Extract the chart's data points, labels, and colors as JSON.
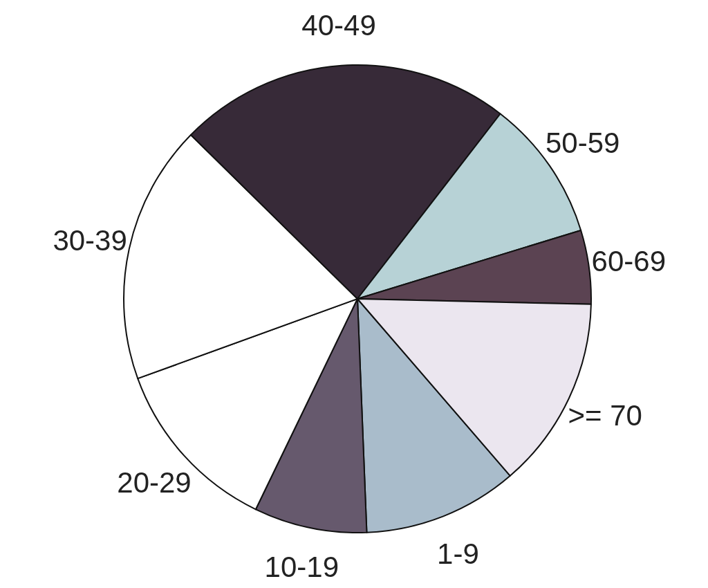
{
  "chart_data": {
    "type": "pie",
    "categories": [
      "1-9",
      "10-19",
      "20-29",
      "30-39",
      "40-49",
      "50-59",
      "60-69",
      ">= 70"
    ],
    "values": [
      10.7,
      7.8,
      12.3,
      17.9,
      23.1,
      9.8,
      5.1,
      13.3
    ],
    "colors": [
      "#a9bccb",
      "#66596d",
      "#ffffff",
      "#ffffff",
      "#372a38",
      "#b7d2d6",
      "#5b4352",
      "#ebe6ef"
    ]
  }
}
